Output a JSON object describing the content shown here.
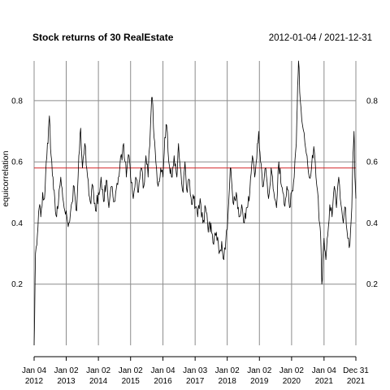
{
  "chart_data": {
    "type": "line",
    "title": "Stock returns of 30 RealEstate",
    "date_range": "2012-01-04 / 2021-12-31",
    "ylabel": "equicorrelation",
    "xlabel": "",
    "ylim": [
      0.0,
      0.93
    ],
    "y_ticks": [
      "0.2",
      "0.4",
      "0.6",
      "0.8"
    ],
    "x_ticks": [
      {
        "date": "2012-01-04",
        "line1": "Jan 04",
        "line2": "2012"
      },
      {
        "date": "2013-01-02",
        "line1": "Jan 02",
        "line2": "2013"
      },
      {
        "date": "2014-01-02",
        "line1": "Jan 02",
        "line2": "2014"
      },
      {
        "date": "2015-01-02",
        "line1": "Jan 02",
        "line2": "2015"
      },
      {
        "date": "2016-01-04",
        "line1": "Jan 04",
        "line2": "2016"
      },
      {
        "date": "2017-01-03",
        "line1": "Jan 03",
        "line2": "2017"
      },
      {
        "date": "2018-01-02",
        "line1": "Jan 02",
        "line2": "2018"
      },
      {
        "date": "2019-01-02",
        "line1": "Jan 02",
        "line2": "2019"
      },
      {
        "date": "2020-01-02",
        "line1": "Jan 02",
        "line2": "2020"
      },
      {
        "date": "2021-01-04",
        "line1": "Jan 04",
        "line2": "2021"
      },
      {
        "date": "2021-12-31",
        "line1": "Dec 31",
        "line2": "2021"
      }
    ],
    "reference_line": {
      "value": 0.58,
      "color": "#d62728"
    },
    "grid": true,
    "series": [
      {
        "color": "#000000",
        "points": [
          [
            "2012-01-04",
            0.0
          ],
          [
            "2012-01-20",
            0.3
          ],
          [
            "2012-02-10",
            0.36
          ],
          [
            "2012-03-01",
            0.45
          ],
          [
            "2012-03-20",
            0.42
          ],
          [
            "2012-04-10",
            0.5
          ],
          [
            "2012-05-01",
            0.48
          ],
          [
            "2012-05-20",
            0.6
          ],
          [
            "2012-06-10",
            0.66
          ],
          [
            "2012-06-25",
            0.75
          ],
          [
            "2012-07-15",
            0.62
          ],
          [
            "2012-08-05",
            0.55
          ],
          [
            "2012-08-25",
            0.48
          ],
          [
            "2012-09-15",
            0.42
          ],
          [
            "2012-10-05",
            0.46
          ],
          [
            "2012-11-01",
            0.55
          ],
          [
            "2012-12-01",
            0.47
          ],
          [
            "2013-01-02",
            0.44
          ],
          [
            "2013-02-01",
            0.4
          ],
          [
            "2013-03-01",
            0.46
          ],
          [
            "2013-04-01",
            0.52
          ],
          [
            "2013-05-01",
            0.44
          ],
          [
            "2013-05-25",
            0.62
          ],
          [
            "2013-06-15",
            0.71
          ],
          [
            "2013-07-05",
            0.58
          ],
          [
            "2013-08-01",
            0.66
          ],
          [
            "2013-09-01",
            0.55
          ],
          [
            "2013-10-01",
            0.47
          ],
          [
            "2013-11-01",
            0.52
          ],
          [
            "2013-12-01",
            0.44
          ],
          [
            "2014-01-02",
            0.5
          ],
          [
            "2014-02-01",
            0.55
          ],
          [
            "2014-03-01",
            0.47
          ],
          [
            "2014-04-01",
            0.54
          ],
          [
            "2014-05-01",
            0.45
          ],
          [
            "2014-06-01",
            0.52
          ],
          [
            "2014-07-01",
            0.47
          ],
          [
            "2014-08-01",
            0.53
          ],
          [
            "2014-09-01",
            0.58
          ],
          [
            "2014-10-15",
            0.66
          ],
          [
            "2014-11-15",
            0.55
          ],
          [
            "2014-12-15",
            0.62
          ],
          [
            "2015-01-02",
            0.55
          ],
          [
            "2015-02-01",
            0.48
          ],
          [
            "2015-03-01",
            0.55
          ],
          [
            "2015-04-01",
            0.5
          ],
          [
            "2015-05-01",
            0.58
          ],
          [
            "2015-06-01",
            0.52
          ],
          [
            "2015-06-25",
            0.62
          ],
          [
            "2015-07-20",
            0.55
          ],
          [
            "2015-08-25",
            0.78
          ],
          [
            "2015-09-05",
            0.81
          ],
          [
            "2015-09-25",
            0.68
          ],
          [
            "2015-10-15",
            0.6
          ],
          [
            "2015-11-10",
            0.52
          ],
          [
            "2015-12-10",
            0.58
          ],
          [
            "2016-01-04",
            0.55
          ],
          [
            "2016-01-25",
            0.68
          ],
          [
            "2016-02-15",
            0.72
          ],
          [
            "2016-03-10",
            0.6
          ],
          [
            "2016-04-10",
            0.55
          ],
          [
            "2016-05-10",
            0.62
          ],
          [
            "2016-06-10",
            0.55
          ],
          [
            "2016-06-28",
            0.66
          ],
          [
            "2016-07-25",
            0.57
          ],
          [
            "2016-08-20",
            0.5
          ],
          [
            "2016-09-10",
            0.6
          ],
          [
            "2016-10-05",
            0.5
          ],
          [
            "2016-11-01",
            0.54
          ],
          [
            "2016-11-25",
            0.46
          ],
          [
            "2016-12-20",
            0.48
          ],
          [
            "2017-01-03",
            0.45
          ],
          [
            "2017-02-01",
            0.42
          ],
          [
            "2017-03-01",
            0.48
          ],
          [
            "2017-04-01",
            0.4
          ],
          [
            "2017-05-01",
            0.45
          ],
          [
            "2017-06-01",
            0.37
          ],
          [
            "2017-07-01",
            0.4
          ],
          [
            "2017-08-01",
            0.33
          ],
          [
            "2017-09-01",
            0.37
          ],
          [
            "2017-10-01",
            0.3
          ],
          [
            "2017-11-01",
            0.34
          ],
          [
            "2017-11-25",
            0.28
          ],
          [
            "2017-12-20",
            0.36
          ],
          [
            "2018-01-02",
            0.38
          ],
          [
            "2018-02-05",
            0.58
          ],
          [
            "2018-02-25",
            0.52
          ],
          [
            "2018-03-15",
            0.46
          ],
          [
            "2018-04-15",
            0.5
          ],
          [
            "2018-05-15",
            0.42
          ],
          [
            "2018-06-15",
            0.46
          ],
          [
            "2018-07-15",
            0.4
          ],
          [
            "2018-08-15",
            0.45
          ],
          [
            "2018-09-15",
            0.5
          ],
          [
            "2018-10-15",
            0.62
          ],
          [
            "2018-11-10",
            0.55
          ],
          [
            "2018-12-10",
            0.66
          ],
          [
            "2018-12-25",
            0.7
          ],
          [
            "2019-01-15",
            0.6
          ],
          [
            "2019-02-15",
            0.52
          ],
          [
            "2019-03-15",
            0.58
          ],
          [
            "2019-04-15",
            0.48
          ],
          [
            "2019-05-15",
            0.58
          ],
          [
            "2019-06-15",
            0.5
          ],
          [
            "2019-07-15",
            0.45
          ],
          [
            "2019-08-10",
            0.6
          ],
          [
            "2019-09-10",
            0.52
          ],
          [
            "2019-10-10",
            0.46
          ],
          [
            "2019-11-10",
            0.52
          ],
          [
            "2019-12-10",
            0.45
          ],
          [
            "2020-01-02",
            0.5
          ],
          [
            "2020-02-01",
            0.55
          ],
          [
            "2020-02-25",
            0.66
          ],
          [
            "2020-03-10",
            0.85
          ],
          [
            "2020-03-20",
            0.93
          ],
          [
            "2020-04-10",
            0.8
          ],
          [
            "2020-05-05",
            0.72
          ],
          [
            "2020-06-01",
            0.66
          ],
          [
            "2020-06-25",
            0.62
          ],
          [
            "2020-07-20",
            0.55
          ],
          [
            "2020-08-15",
            0.58
          ],
          [
            "2020-09-10",
            0.65
          ],
          [
            "2020-10-05",
            0.55
          ],
          [
            "2020-10-30",
            0.48
          ],
          [
            "2020-11-15",
            0.4
          ],
          [
            "2020-12-01",
            0.32
          ],
          [
            "2020-12-10",
            0.2
          ],
          [
            "2020-12-25",
            0.3
          ],
          [
            "2021-01-04",
            0.35
          ],
          [
            "2021-01-25",
            0.28
          ],
          [
            "2021-02-15",
            0.36
          ],
          [
            "2021-03-10",
            0.46
          ],
          [
            "2021-04-05",
            0.42
          ],
          [
            "2021-05-01",
            0.52
          ],
          [
            "2021-05-25",
            0.45
          ],
          [
            "2021-06-20",
            0.55
          ],
          [
            "2021-07-15",
            0.46
          ],
          [
            "2021-08-10",
            0.4
          ],
          [
            "2021-09-05",
            0.45
          ],
          [
            "2021-09-30",
            0.35
          ],
          [
            "2021-10-25",
            0.33
          ],
          [
            "2021-11-15",
            0.45
          ],
          [
            "2021-11-28",
            0.62
          ],
          [
            "2021-12-10",
            0.7
          ],
          [
            "2021-12-20",
            0.55
          ],
          [
            "2021-12-31",
            0.48
          ]
        ]
      }
    ]
  }
}
